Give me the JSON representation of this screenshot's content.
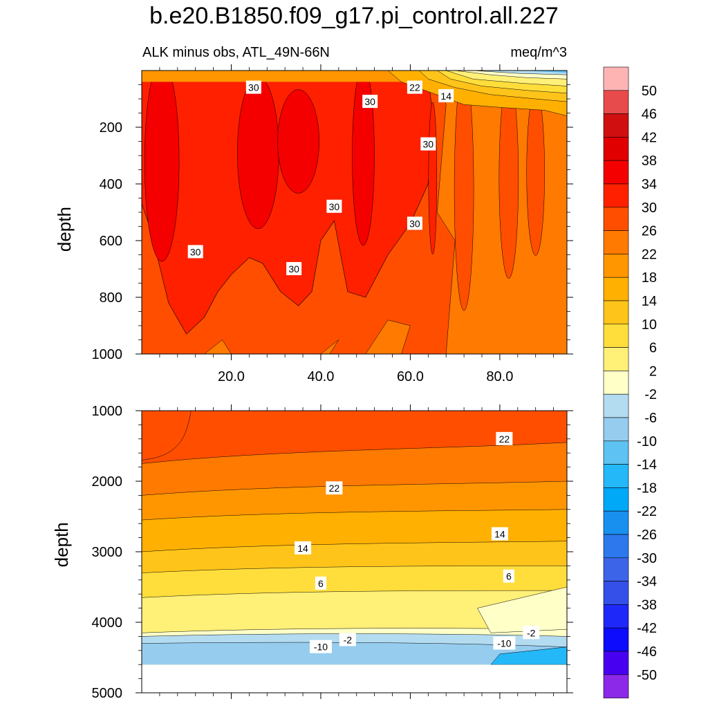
{
  "chart_data": [
    {
      "type": "contour",
      "title": "b.e20.B1850.f09_g17.pi_control.all.227",
      "subtitle_left": "ALK minus obs, ATL_49N-66N",
      "subtitle_right": "meq/m^3",
      "ylabel": "depth",
      "xlim": [
        0,
        95
      ],
      "ylim": [
        0,
        1000
      ],
      "yticks": [
        200,
        400,
        600,
        800,
        1000
      ],
      "xticks": [
        20.0,
        40.0,
        60.0,
        80.0
      ],
      "xtick_labels": [
        "20.0",
        "40.0",
        "60.0",
        "80.0"
      ],
      "contour_labels": [
        {
          "text": "30",
          "x": 25,
          "y": 60
        },
        {
          "text": "22",
          "x": 61,
          "y": 60
        },
        {
          "text": "14",
          "x": 68,
          "y": 90
        },
        {
          "text": "30",
          "x": 51,
          "y": 110
        },
        {
          "text": "30",
          "x": 64,
          "y": 260
        },
        {
          "text": "30",
          "x": 43,
          "y": 480
        },
        {
          "text": "30",
          "x": 61,
          "y": 540
        },
        {
          "text": "30",
          "x": 12,
          "y": 640
        },
        {
          "text": "30",
          "x": 34,
          "y": 700
        }
      ]
    },
    {
      "type": "contour",
      "ylabel": "depth",
      "xlim": [
        0,
        95
      ],
      "ylim": [
        1000,
        5000
      ],
      "yticks": [
        1000,
        2000,
        3000,
        4000,
        5000
      ],
      "bottom_depth": 4600,
      "contour_labels": [
        {
          "text": "22",
          "x": 81,
          "y": 1400
        },
        {
          "text": "22",
          "x": 43,
          "y": 2100
        },
        {
          "text": "14",
          "x": 80,
          "y": 2750
        },
        {
          "text": "14",
          "x": 36,
          "y": 2950
        },
        {
          "text": "6",
          "x": 40,
          "y": 3450
        },
        {
          "text": "6",
          "x": 82,
          "y": 3350
        },
        {
          "text": "-2",
          "x": 46,
          "y": 4250
        },
        {
          "text": "-2",
          "x": 87,
          "y": 4150
        },
        {
          "text": "-10",
          "x": 40,
          "y": 4350
        },
        {
          "text": "-10",
          "x": 81,
          "y": 4300
        }
      ]
    }
  ],
  "colorbar": {
    "labels": [
      "50",
      "46",
      "42",
      "38",
      "34",
      "30",
      "26",
      "22",
      "18",
      "14",
      "10",
      "6",
      "2",
      "-2",
      "-6",
      "-10",
      "-14",
      "-18",
      "-22",
      "-26",
      "-30",
      "-34",
      "-38",
      "-42",
      "-46",
      "-50"
    ],
    "colors": [
      "#FFB4B4",
      "#E84B4B",
      "#D01010",
      "#E00000",
      "#F40000",
      "#FF2000",
      "#FF4E00",
      "#FF7A00",
      "#FF9600",
      "#FFB000",
      "#FFC41A",
      "#FFDE3C",
      "#FFF078",
      "#FFFFC8",
      "#B4DCF0",
      "#96CCEE",
      "#5EC2F2",
      "#24B8F8",
      "#00A8F8",
      "#1890F0",
      "#2C78EC",
      "#3C64E8",
      "#3450E8",
      "#1E28F8",
      "#0E0CFC",
      "#4800F0",
      "#8C28E8"
    ]
  }
}
